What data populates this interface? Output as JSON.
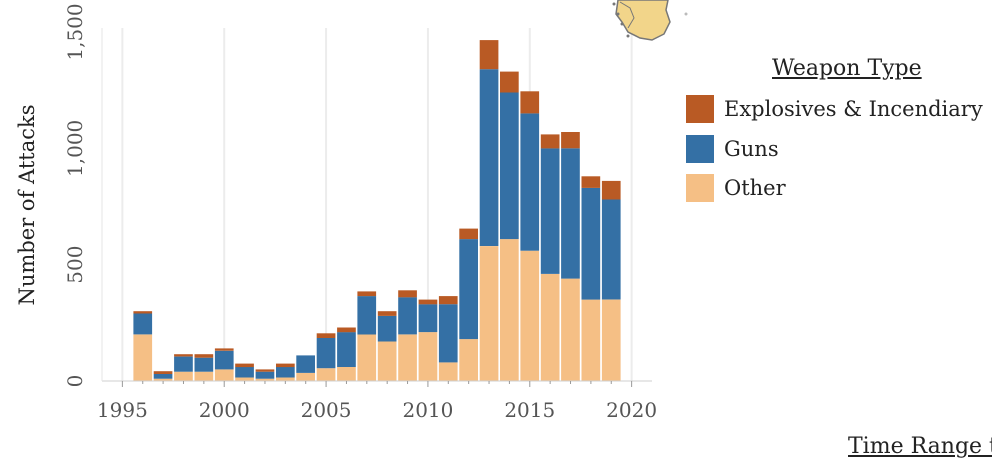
{
  "chart_data": {
    "type": "bar",
    "stacked": true,
    "ylabel": "Number of Attacks",
    "xlabel": "",
    "ylim": [
      0,
      1500
    ],
    "yticks": [
      0,
      500,
      1000,
      1500
    ],
    "ytick_labels": [
      "0",
      "500",
      "1,000",
      "1,500"
    ],
    "xticks": [
      1995,
      2000,
      2005,
      2010,
      2015,
      2020
    ],
    "xtick_labels": [
      "1995",
      "2000",
      "2005",
      "2010",
      "2015",
      "2020"
    ],
    "xlim": [
      1994,
      2021
    ],
    "grid": "vertical",
    "legend_position": "right",
    "categories": [
      1996,
      1997,
      1998,
      1999,
      2000,
      2001,
      2002,
      2003,
      2004,
      2005,
      2006,
      2007,
      2008,
      2009,
      2010,
      2011,
      2012,
      2013,
      2014,
      2015,
      2016,
      2017,
      2018,
      2019,
      2020
    ],
    "series": [
      {
        "name": "Other",
        "color": "#F5BF85",
        "values": [
          200,
          10,
          40,
          40,
          50,
          15,
          10,
          15,
          35,
          55,
          60,
          200,
          170,
          200,
          210,
          80,
          180,
          580,
          610,
          560,
          460,
          440,
          350,
          350,
          0
        ]
      },
      {
        "name": "Guns",
        "color": "#3470A5",
        "values": [
          90,
          20,
          65,
          60,
          80,
          45,
          30,
          45,
          75,
          130,
          150,
          165,
          110,
          160,
          120,
          250,
          430,
          760,
          630,
          590,
          540,
          560,
          480,
          430,
          0
        ]
      },
      {
        "name": "Explosives & Incendiary",
        "color": "#B95A24",
        "values": [
          10,
          12,
          10,
          15,
          10,
          15,
          10,
          15,
          0,
          20,
          20,
          20,
          20,
          30,
          20,
          35,
          45,
          125,
          90,
          95,
          60,
          70,
          50,
          80,
          0
        ]
      }
    ]
  },
  "legend": {
    "title": "Weapon Type",
    "items": [
      {
        "label": "Explosives & Incendiary",
        "color": "#B95A24"
      },
      {
        "label": "Guns",
        "color": "#3470A5"
      },
      {
        "label": "Other",
        "color": "#F5BF85"
      }
    ]
  },
  "footer": {
    "link_text": "Time Range to"
  }
}
